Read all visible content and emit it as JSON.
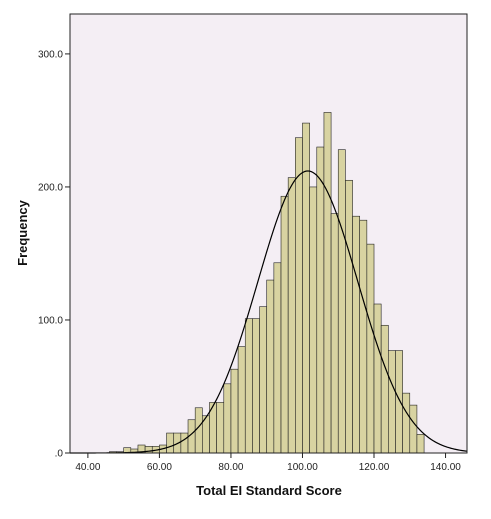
{
  "chart_data": {
    "type": "bar",
    "xlabel": "Total EI Standard Score",
    "ylabel": "Frequency",
    "xlim": [
      35.0,
      146.0
    ],
    "ylim": [
      0,
      330
    ],
    "x_ticks": [
      {
        "value": 40,
        "label": "40.00"
      },
      {
        "value": 60,
        "label": "60.00"
      },
      {
        "value": 80,
        "label": "80.00"
      },
      {
        "value": 100,
        "label": "100.00"
      },
      {
        "value": 120,
        "label": "120.00"
      },
      {
        "value": 140,
        "label": "140.00"
      }
    ],
    "y_ticks": [
      {
        "value": 0,
        "label": ".0"
      },
      {
        "value": 100,
        "label": "100.0"
      },
      {
        "value": 200,
        "label": "200.0"
      },
      {
        "value": 300,
        "label": "300.0"
      }
    ],
    "bin_width": 2,
    "bin_starts": [
      46,
      48,
      50,
      52,
      54,
      56,
      58,
      60,
      62,
      64,
      66,
      68,
      70,
      72,
      74,
      76,
      78,
      80,
      82,
      84,
      86,
      88,
      90,
      92,
      94,
      96,
      98,
      100,
      102,
      104,
      106,
      108,
      110,
      112,
      114,
      116,
      118,
      120,
      122,
      124,
      126,
      128,
      130,
      132
    ],
    "frequencies": [
      1,
      1,
      4,
      3,
      6,
      5,
      5,
      6,
      15,
      15,
      15,
      25,
      34,
      28,
      38,
      38,
      52,
      63,
      80,
      101,
      101,
      110,
      130,
      143,
      193,
      207,
      237,
      248,
      200,
      230,
      256,
      180,
      228,
      205,
      178,
      175,
      157,
      112,
      96,
      77,
      77,
      45,
      36,
      14
    ],
    "normal_curve": {
      "mean": 101.5,
      "sd": 14.0,
      "n": 3720
    },
    "plot_background": "#f4eef4",
    "bar_fill": "#d8d3a1",
    "bar_stroke": "#222222",
    "curve_color": "#000000"
  }
}
